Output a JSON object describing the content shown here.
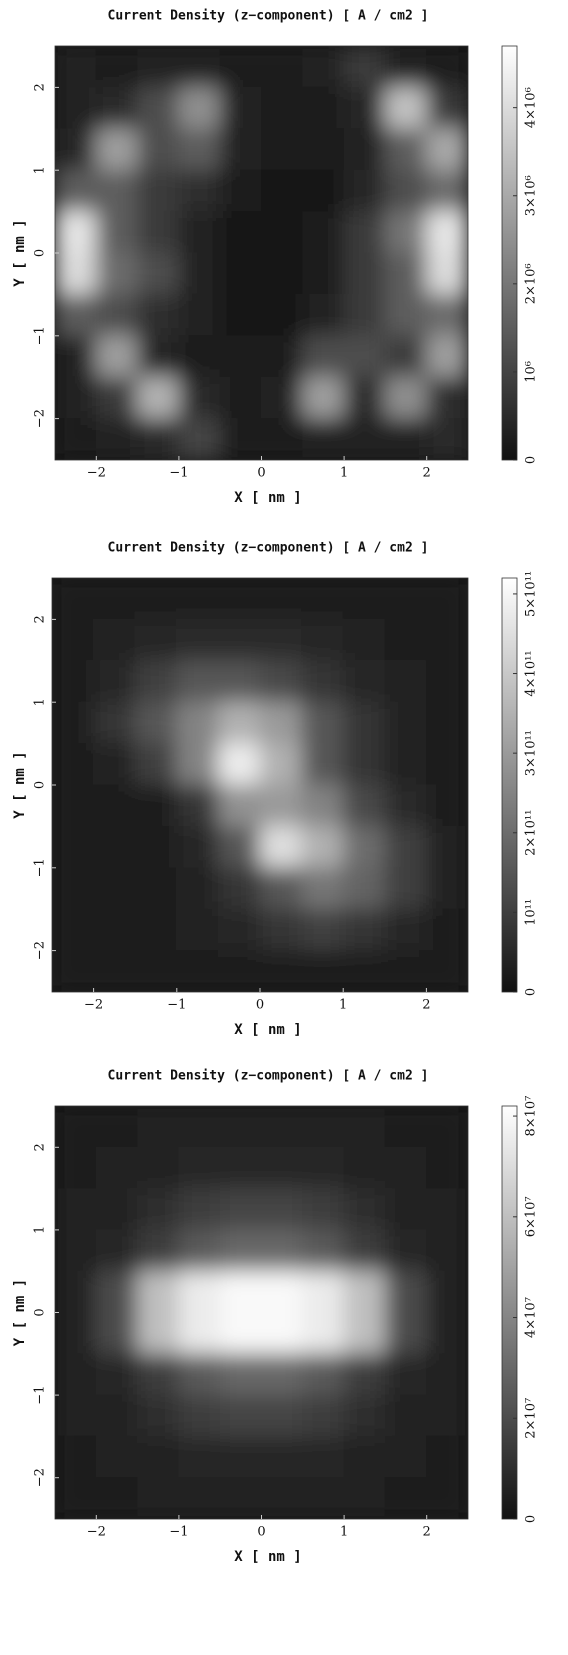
{
  "chart_data": [
    {
      "type": "heatmap",
      "title": "Current Density (z−component) [ A / cm2 ]",
      "x_label": "X [ nm ]",
      "y_label": "Y [ nm ]",
      "x": [
        -2.25,
        -1.75,
        -1.25,
        -0.75,
        -0.25,
        0.25,
        0.75,
        1.25,
        1.75,
        2.25
      ],
      "y": [
        2.25,
        1.75,
        1.25,
        0.75,
        0.25,
        -0.25,
        -0.75,
        -1.25,
        -1.75,
        -2.25
      ],
      "z": [
        [
          300000.0,
          200000.0,
          300000.0,
          300000.0,
          200000.0,
          200000.0,
          300000.0,
          800000.0,
          300000.0,
          200000.0
        ],
        [
          300000.0,
          500000.0,
          1200000.0,
          2500000.0,
          300000.0,
          200000.0,
          200000.0,
          400000.0,
          3500000.0,
          800000.0
        ],
        [
          400000.0,
          2800000.0,
          1200000.0,
          1500000.0,
          300000.0,
          200000.0,
          200000.0,
          300000.0,
          1500000.0,
          3000000.0
        ],
        [
          1500000.0,
          1500000.0,
          800000.0,
          600000.0,
          200000.0,
          100000.0,
          100000.0,
          400000.0,
          1200000.0,
          1800000.0
        ],
        [
          4200000.0,
          1500000.0,
          800000.0,
          300000.0,
          100000.0,
          100000.0,
          200000.0,
          800000.0,
          2000000.0,
          4200000.0
        ],
        [
          4000000.0,
          1800000.0,
          1200000.0,
          300000.0,
          100000.0,
          100000.0,
          200000.0,
          800000.0,
          1500000.0,
          4000000.0
        ],
        [
          1500000.0,
          1200000.0,
          600000.0,
          300000.0,
          100000.0,
          100000.0,
          300000.0,
          800000.0,
          1500000.0,
          1800000.0
        ],
        [
          300000.0,
          2800000.0,
          400000.0,
          200000.0,
          200000.0,
          200000.0,
          1200000.0,
          1200000.0,
          800000.0,
          2800000.0
        ],
        [
          300000.0,
          800000.0,
          3200000.0,
          500000.0,
          200000.0,
          300000.0,
          2800000.0,
          500000.0,
          2500000.0,
          600000.0
        ],
        [
          200000.0,
          300000.0,
          500000.0,
          1000000.0,
          200000.0,
          200000.0,
          300000.0,
          300000.0,
          300000.0,
          500000.0
        ]
      ],
      "xlim": [
        -2.5,
        2.5
      ],
      "ylim": [
        -2.5,
        2.5
      ],
      "xticks": [
        {
          "value": -2,
          "label": "−2"
        },
        {
          "value": -1,
          "label": "−1"
        },
        0,
        1,
        2
      ],
      "yticks": [
        {
          "value": -2,
          "label": "−2"
        },
        {
          "value": -1,
          "label": "−1"
        },
        0,
        1,
        2
      ],
      "zlim": [
        0,
        4700000
      ],
      "zticks": [
        0,
        {
          "value": 1000000,
          "label": "10⁶"
        },
        {
          "value": 2000000,
          "label": "2×10⁶"
        },
        {
          "value": 3000000,
          "label": "3×10⁶"
        },
        {
          "value": 4000000,
          "label": "4×10⁶"
        }
      ]
    },
    {
      "type": "heatmap",
      "title": "Current Density (z−component) [ A / cm2 ]",
      "x_label": "X [ nm ]",
      "y_label": "Y [ nm ]",
      "x": [
        -2.25,
        -1.75,
        -1.25,
        -0.75,
        -0.25,
        0.25,
        0.75,
        1.25,
        1.75,
        2.25
      ],
      "y": [
        2.25,
        1.75,
        1.25,
        0.75,
        0.25,
        -0.25,
        -0.75,
        -1.25,
        -1.75,
        -2.25
      ],
      "z": [
        [
          30000000000.0,
          30000000000.0,
          30000000000.0,
          30000000000.0,
          30000000000.0,
          30000000000.0,
          30000000000.0,
          30000000000.0,
          30000000000.0,
          30000000000.0
        ],
        [
          30000000000.0,
          40000000000.0,
          50000000000.0,
          60000000000.0,
          60000000000.0,
          60000000000.0,
          50000000000.0,
          40000000000.0,
          30000000000.0,
          30000000000.0
        ],
        [
          30000000000.0,
          50000000000.0,
          100000000000.0,
          150000000000.0,
          150000000000.0,
          120000000000.0,
          80000000000.0,
          50000000000.0,
          40000000000.0,
          30000000000.0
        ],
        [
          30000000000.0,
          80000000000.0,
          150000000000.0,
          250000000000.0,
          350000000000.0,
          300000000000.0,
          150000000000.0,
          80000000000.0,
          40000000000.0,
          30000000000.0
        ],
        [
          20000000000.0,
          40000000000.0,
          100000000000.0,
          250000000000.0,
          480000000000.0,
          350000000000.0,
          150000000000.0,
          80000000000.0,
          40000000000.0,
          30000000000.0
        ],
        [
          20000000000.0,
          20000000000.0,
          30000000000.0,
          80000000000.0,
          280000000000.0,
          300000000000.0,
          250000000000.0,
          120000000000.0,
          60000000000.0,
          30000000000.0
        ],
        [
          20000000000.0,
          20000000000.0,
          30000000000.0,
          50000000000.0,
          150000000000.0,
          450000000000.0,
          350000000000.0,
          200000000000.0,
          100000000000.0,
          40000000000.0
        ],
        [
          20000000000.0,
          20000000000.0,
          30000000000.0,
          40000000000.0,
          80000000000.0,
          150000000000.0,
          220000000000.0,
          180000000000.0,
          100000000000.0,
          40000000000.0
        ],
        [
          20000000000.0,
          20000000000.0,
          30000000000.0,
          40000000000.0,
          50000000000.0,
          80000000000.0,
          100000000000.0,
          80000000000.0,
          50000000000.0,
          30000000000.0
        ],
        [
          20000000000.0,
          20000000000.0,
          20000000000.0,
          30000000000.0,
          30000000000.0,
          30000000000.0,
          30000000000.0,
          30000000000.0,
          30000000000.0,
          30000000000.0
        ]
      ],
      "xlim": [
        -2.5,
        2.5
      ],
      "ylim": [
        -2.5,
        2.5
      ],
      "xticks": [
        {
          "value": -2,
          "label": "−2"
        },
        {
          "value": -1,
          "label": "−1"
        },
        0,
        1,
        2
      ],
      "yticks": [
        {
          "value": -2,
          "label": "−2"
        },
        {
          "value": -1,
          "label": "−1"
        },
        0,
        1,
        2
      ],
      "zlim": [
        0,
        520000000000
      ],
      "zticks": [
        0,
        {
          "value": 100000000000,
          "label": "10¹¹"
        },
        {
          "value": 200000000000,
          "label": "2×10¹¹"
        },
        {
          "value": 300000000000,
          "label": "3×10¹¹"
        },
        {
          "value": 400000000000,
          "label": "4×10¹¹"
        },
        {
          "value": 500000000000,
          "label": "5×10¹¹"
        }
      ]
    },
    {
      "type": "heatmap",
      "title": "Current Density (z−component) [ A / cm2 ]",
      "x_label": "X [ nm ]",
      "y_label": "Y [ nm ]",
      "x": [
        -2.25,
        -1.75,
        -1.25,
        -0.75,
        -0.25,
        0.25,
        0.75,
        1.25,
        1.75,
        2.25
      ],
      "y": [
        2.25,
        1.75,
        1.25,
        0.75,
        0.25,
        -0.25,
        -0.75,
        -1.25,
        -1.75,
        -2.25
      ],
      "z": [
        [
          4000000.0,
          4000000.0,
          5000000.0,
          5000000.0,
          5000000.0,
          5000000.0,
          5000000.0,
          5000000.0,
          4000000.0,
          4000000.0
        ],
        [
          4000000.0,
          5000000.0,
          6000000.0,
          7000000.0,
          8000000.0,
          8000000.0,
          7000000.0,
          6000000.0,
          5000000.0,
          4000000.0
        ],
        [
          5000000.0,
          6000000.0,
          10000000.0,
          15000000.0,
          18000000.0,
          18000000.0,
          15000000.0,
          10000000.0,
          6000000.0,
          5000000.0
        ],
        [
          5000000.0,
          8000000.0,
          15000000.0,
          25000000.0,
          30000000.0,
          30000000.0,
          25000000.0,
          15000000.0,
          8000000.0,
          5000000.0
        ],
        [
          6000000.0,
          20000000.0,
          60000000.0,
          75000000.0,
          80000000.0,
          80000000.0,
          75000000.0,
          60000000.0,
          20000000.0,
          6000000.0
        ],
        [
          6000000.0,
          20000000.0,
          60000000.0,
          75000000.0,
          80000000.0,
          80000000.0,
          75000000.0,
          60000000.0,
          20000000.0,
          6000000.0
        ],
        [
          5000000.0,
          8000000.0,
          15000000.0,
          25000000.0,
          30000000.0,
          30000000.0,
          25000000.0,
          15000000.0,
          8000000.0,
          5000000.0
        ],
        [
          5000000.0,
          6000000.0,
          10000000.0,
          15000000.0,
          18000000.0,
          18000000.0,
          15000000.0,
          10000000.0,
          6000000.0,
          5000000.0
        ],
        [
          4000000.0,
          5000000.0,
          6000000.0,
          7000000.0,
          8000000.0,
          8000000.0,
          7000000.0,
          6000000.0,
          5000000.0,
          4000000.0
        ],
        [
          4000000.0,
          4000000.0,
          5000000.0,
          5000000.0,
          5000000.0,
          5000000.0,
          5000000.0,
          5000000.0,
          4000000.0,
          4000000.0
        ]
      ],
      "xlim": [
        -2.5,
        2.5
      ],
      "ylim": [
        -2.5,
        2.5
      ],
      "xticks": [
        {
          "value": -2,
          "label": "−2"
        },
        {
          "value": -1,
          "label": "−1"
        },
        0,
        1,
        2
      ],
      "yticks": [
        {
          "value": -2,
          "label": "−2"
        },
        {
          "value": -1,
          "label": "−1"
        },
        0,
        1,
        2
      ],
      "zlim": [
        0,
        82000000
      ],
      "zticks": [
        0,
        {
          "value": 20000000,
          "label": "2×10⁷"
        },
        {
          "value": 40000000,
          "label": "4×10⁷"
        },
        {
          "value": 60000000,
          "label": "6×10⁷"
        },
        {
          "value": 80000000,
          "label": "8×10⁷"
        }
      ]
    }
  ]
}
